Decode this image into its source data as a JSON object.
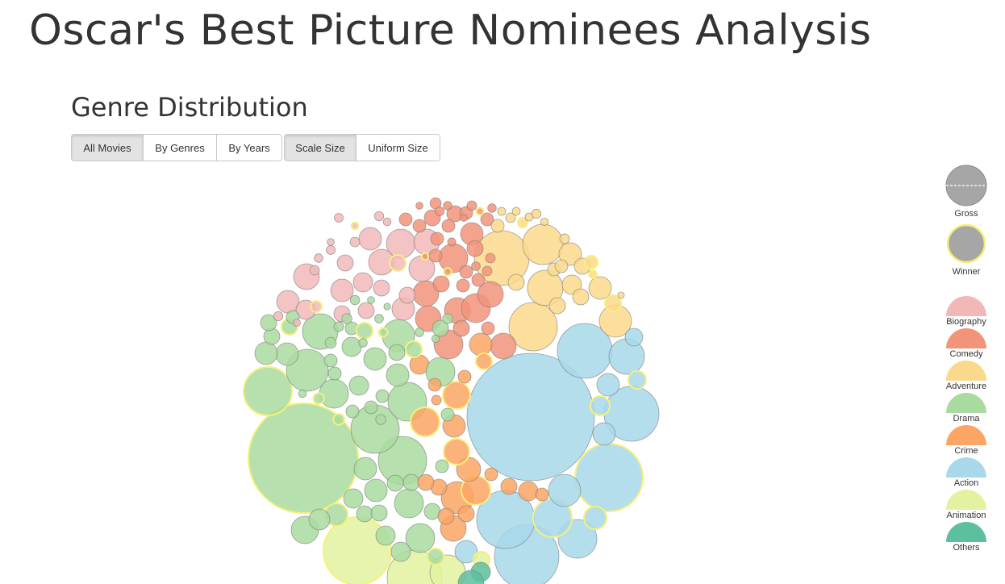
{
  "page": {
    "title": "Oscar's Best Picture Nominees Analysis"
  },
  "section": {
    "title": "Genre Distribution"
  },
  "controls": {
    "group_view": [
      {
        "label": "All Movies",
        "active": true
      },
      {
        "label": "By Genres",
        "active": false
      },
      {
        "label": "By Years",
        "active": false
      }
    ],
    "group_size": [
      {
        "label": "Scale Size",
        "active": true
      },
      {
        "label": "Uniform Size",
        "active": false
      }
    ]
  },
  "legend": {
    "gross_label": "Gross",
    "winner_label": "Winner",
    "genres": [
      {
        "label": "Biography",
        "color": "#f2b8b8"
      },
      {
        "label": "Comedy",
        "color": "#f2947a"
      },
      {
        "label": "Adventure",
        "color": "#fbd98c"
      },
      {
        "label": "Drama",
        "color": "#a9dba0"
      },
      {
        "label": "Crime",
        "color": "#fca564"
      },
      {
        "label": "Action",
        "color": "#a8d8ea"
      },
      {
        "label": "Animation",
        "color": "#e2f2a0"
      },
      {
        "label": "Others",
        "color": "#5cbf9e"
      }
    ],
    "neutral_color": "#a6a6a6",
    "winner_stroke": "#f6f07a"
  }
}
